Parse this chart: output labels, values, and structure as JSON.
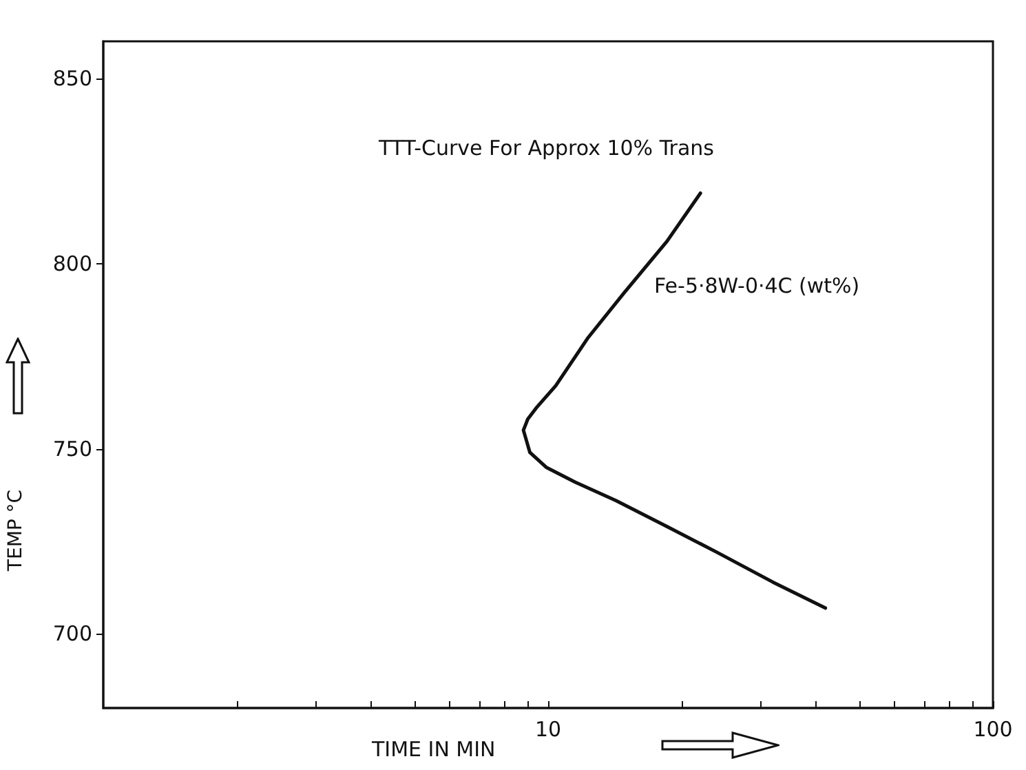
{
  "chart_data": {
    "type": "line",
    "xlabel": "TIME IN MIN",
    "ylabel": "TEMP °C",
    "annotations": [
      "TTT-Curve For Approx 10% Trans",
      "Fe-5·8W-0·4C (wt%)"
    ],
    "series": [
      {
        "color": "#111111",
        "x": [
          22,
          18.5,
          14.8,
          12.3,
          10.4,
          9.4,
          9.0,
          8.8,
          9.1,
          9.9,
          11.5,
          14.2,
          18.5,
          24,
          32,
          42
        ],
        "values": [
          819,
          806,
          792,
          780,
          767,
          761,
          758,
          755,
          749,
          745,
          741,
          736,
          729,
          722,
          714,
          707
        ]
      }
    ],
    "log": "x",
    "xlim": [
      1,
      100
    ],
    "xticks": [
      {
        "value": 2,
        "label": null
      },
      {
        "value": 3,
        "label": null
      },
      {
        "value": 4,
        "label": null
      },
      {
        "value": 5,
        "label": null
      },
      {
        "value": 6,
        "label": null
      },
      {
        "value": 7,
        "label": null
      },
      {
        "value": 8,
        "label": null
      },
      {
        "value": 9,
        "label": null
      },
      10,
      {
        "value": 20,
        "label": null
      },
      {
        "value": 30,
        "label": null
      },
      {
        "value": 40,
        "label": null
      },
      {
        "value": 50,
        "label": null
      },
      {
        "value": 60,
        "label": null
      },
      {
        "value": 70,
        "label": null
      },
      {
        "value": 80,
        "label": null
      },
      {
        "value": 90,
        "label": null
      },
      100
    ],
    "ylim": [
      680,
      860
    ],
    "yticks": [
      700,
      750,
      800,
      850
    ],
    "grid": false,
    "marker": "none",
    "line_style": "solid"
  }
}
